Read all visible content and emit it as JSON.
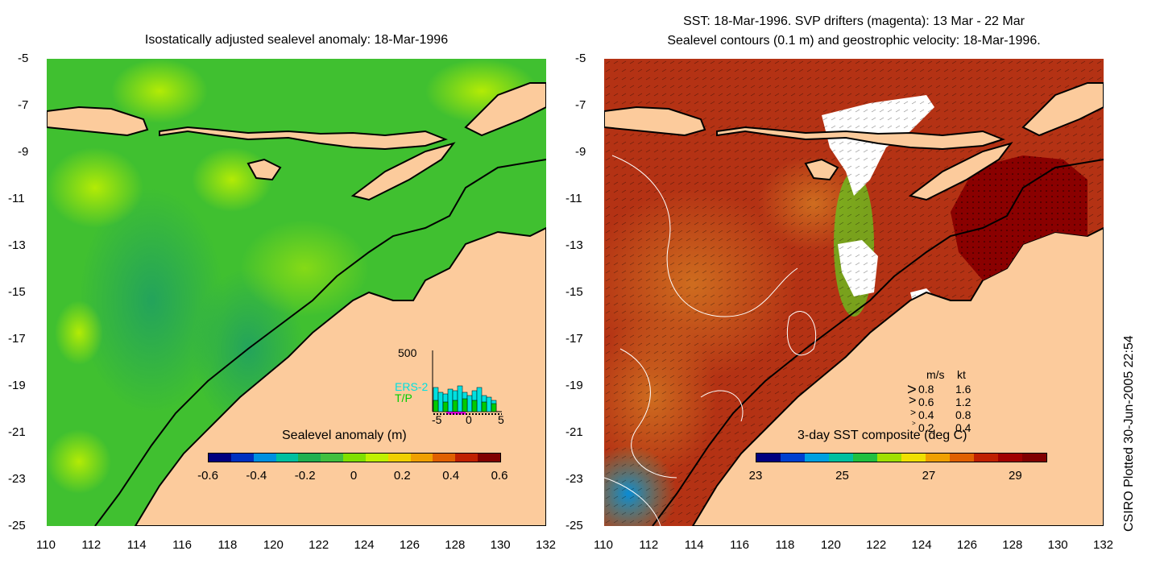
{
  "left_panel": {
    "title": "Isostatically adjusted sealevel anomaly: 18-Mar-1996",
    "colorbar": {
      "title": "Sealevel anomaly (m)",
      "labels": [
        "-0.6",
        "-0.4",
        "-0.2",
        "0",
        "0.2",
        "0.4",
        "0.6"
      ],
      "colors": [
        "#00007f",
        "#0030c0",
        "#0090e0",
        "#00c0a0",
        "#20b050",
        "#40c040",
        "#80e000",
        "#c0f000",
        "#f0d000",
        "#f0a000",
        "#e06000",
        "#c02000",
        "#800000"
      ]
    },
    "inset": {
      "y_label": "500",
      "series": [
        "ERS-2",
        "T/P"
      ],
      "series_colors": [
        "#00e0e0",
        "#00cc00"
      ],
      "x_labels": [
        "-5",
        "0",
        "5"
      ]
    }
  },
  "right_panel": {
    "title_line1": "SST: 18-Mar-1996. SVP drifters (magenta): 13 Mar - 22 Mar",
    "title_line2": "Sealevel contours (0.1 m) and geostrophic velocity: 18-Mar-1996.",
    "colorbar": {
      "title": "3-day SST composite (deg C)",
      "labels": [
        "23",
        "25",
        "27",
        "29"
      ],
      "colors": [
        "#00007f",
        "#0040d0",
        "#00a0e0",
        "#00c0a0",
        "#20c040",
        "#a0e000",
        "#f0e000",
        "#f0a000",
        "#e06000",
        "#c02000",
        "#a00000",
        "#800000"
      ]
    },
    "velocity_legend": {
      "header_ms": "m/s",
      "header_kt": "kt",
      "rows": [
        {
          "ms": "0.8",
          "kt": "1.6"
        },
        {
          "ms": "0.6",
          "kt": "1.2"
        },
        {
          "ms": "0.4",
          "kt": "0.8"
        },
        {
          "ms": "0.2",
          "kt": "0.4"
        }
      ]
    }
  },
  "y_axis": [
    "-5",
    "-7",
    "-9",
    "-11",
    "-13",
    "-15",
    "-17",
    "-19",
    "-21",
    "-23",
    "-25"
  ],
  "x_axis": [
    "110",
    "112",
    "114",
    "116",
    "118",
    "120",
    "122",
    "124",
    "126",
    "128",
    "130",
    "132"
  ],
  "credit": "CSIRO Plotted 30-Jun-2005 22:54",
  "colors": {
    "land": "#fccb9c",
    "ocean_left": "#40c020",
    "ocean_right": "#b43214",
    "cloud": "#ffffff"
  }
}
